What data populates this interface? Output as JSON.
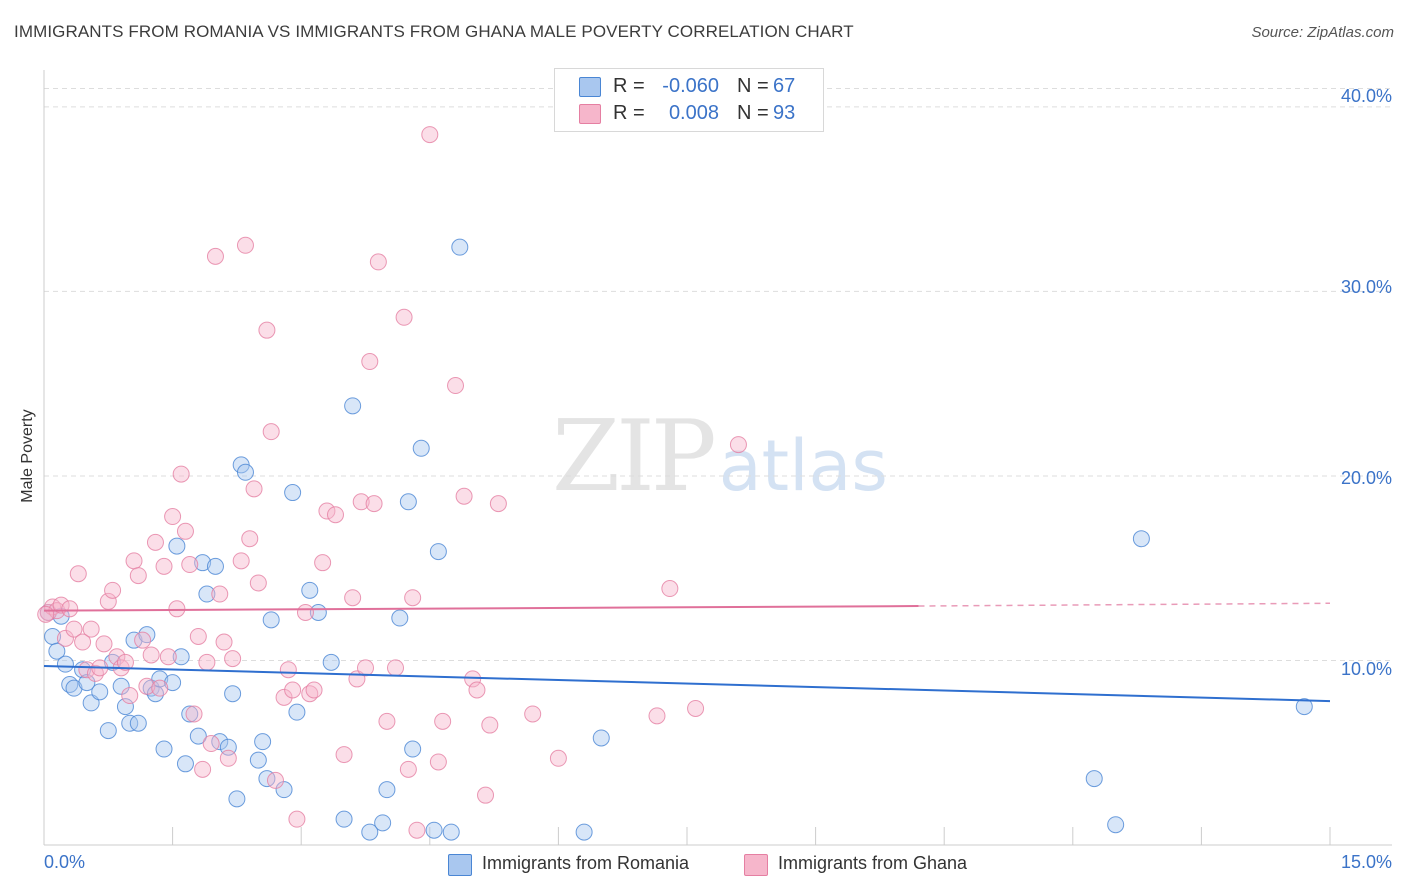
{
  "header": {
    "title": "IMMIGRANTS FROM ROMANIA VS IMMIGRANTS FROM GHANA MALE POVERTY CORRELATION CHART",
    "source": "Source: ZipAtlas.com"
  },
  "watermark": {
    "zip": "ZIP",
    "atlas": "atlas"
  },
  "legend_top": {
    "rows": [
      {
        "r_label": "R =",
        "r_value": "-0.060",
        "n_label": "N =",
        "n_value": "67",
        "color": "#a9c7ef"
      },
      {
        "r_label": "R =",
        "r_value": "0.008",
        "n_label": "N =",
        "n_value": "93",
        "color": "#f6b6cb"
      }
    ]
  },
  "legend_bottom": {
    "items": [
      {
        "label": "Immigrants from Romania",
        "color": "#a9c7ef"
      },
      {
        "label": "Immigrants from Ghana",
        "color": "#f6b6cb"
      }
    ]
  },
  "axes": {
    "x_min_label": "0.0%",
    "x_max_label": "15.0%",
    "y_ticks": [
      "10.0%",
      "20.0%",
      "30.0%",
      "40.0%"
    ],
    "ylabel": "Male Poverty"
  },
  "colors": {
    "romania_fill": "#a9c7ef",
    "romania_stroke": "#4a86d4",
    "romania_line": "#2f6fcf",
    "ghana_fill": "#f6b6cb",
    "ghana_stroke": "#e57fa2",
    "ghana_line": "#e0709a",
    "axis_text": "#3b73c8",
    "grid": "#dddddd"
  },
  "chart_data": {
    "type": "scatter",
    "title": "IMMIGRANTS FROM ROMANIA VS IMMIGRANTS FROM GHANA MALE POVERTY CORRELATION CHART",
    "xlabel": "",
    "ylabel": "Male Poverty",
    "xlim": [
      0,
      15
    ],
    "ylim": [
      0,
      42
    ],
    "y_ticks": [
      10,
      20,
      30,
      40
    ],
    "grid": "horizontal dashed",
    "series": [
      {
        "name": "Immigrants from Romania",
        "r": -0.06,
        "n": 67,
        "trend": {
          "x": [
            0,
            15
          ],
          "y": [
            9.7,
            7.8
          ]
        },
        "points": [
          [
            0.1,
            11.3
          ],
          [
            0.15,
            10.5
          ],
          [
            0.2,
            12.4
          ],
          [
            0.25,
            9.8
          ],
          [
            0.3,
            8.7
          ],
          [
            0.35,
            8.5
          ],
          [
            0.45,
            9.5
          ],
          [
            0.5,
            8.8
          ],
          [
            0.55,
            7.7
          ],
          [
            0.65,
            8.3
          ],
          [
            0.75,
            6.2
          ],
          [
            0.8,
            9.9
          ],
          [
            0.9,
            8.6
          ],
          [
            0.95,
            7.5
          ],
          [
            1.0,
            6.6
          ],
          [
            1.05,
            11.1
          ],
          [
            1.1,
            6.6
          ],
          [
            1.2,
            11.4
          ],
          [
            1.25,
            8.5
          ],
          [
            1.3,
            8.2
          ],
          [
            1.35,
            9.0
          ],
          [
            1.4,
            5.2
          ],
          [
            1.5,
            8.8
          ],
          [
            1.55,
            16.2
          ],
          [
            1.6,
            10.2
          ],
          [
            1.65,
            4.4
          ],
          [
            1.7,
            7.1
          ],
          [
            1.8,
            5.9
          ],
          [
            1.85,
            15.3
          ],
          [
            1.9,
            13.6
          ],
          [
            2.0,
            15.1
          ],
          [
            2.05,
            5.6
          ],
          [
            2.15,
            5.3
          ],
          [
            2.2,
            8.2
          ],
          [
            2.25,
            2.5
          ],
          [
            2.3,
            20.6
          ],
          [
            2.35,
            20.2
          ],
          [
            2.5,
            4.6
          ],
          [
            2.55,
            5.6
          ],
          [
            2.6,
            3.6
          ],
          [
            2.65,
            12.2
          ],
          [
            2.8,
            3.0
          ],
          [
            2.95,
            7.2
          ],
          [
            2.9,
            19.1
          ],
          [
            3.1,
            13.8
          ],
          [
            3.2,
            12.6
          ],
          [
            3.35,
            9.9
          ],
          [
            3.5,
            1.4
          ],
          [
            3.6,
            23.8
          ],
          [
            3.8,
            0.7
          ],
          [
            3.95,
            1.2
          ],
          [
            4.0,
            3.0
          ],
          [
            4.15,
            12.3
          ],
          [
            4.25,
            18.6
          ],
          [
            4.3,
            5.2
          ],
          [
            4.4,
            21.5
          ],
          [
            4.55,
            0.8
          ],
          [
            4.6,
            15.9
          ],
          [
            4.75,
            0.7
          ],
          [
            4.85,
            32.4
          ],
          [
            6.3,
            0.7
          ],
          [
            6.5,
            5.8
          ],
          [
            12.25,
            3.6
          ],
          [
            12.5,
            1.1
          ],
          [
            12.8,
            16.6
          ],
          [
            14.7,
            7.5
          ],
          [
            0.05,
            12.6
          ]
        ]
      },
      {
        "name": "Immigrants from Ghana",
        "r": 0.008,
        "n": 93,
        "trend": {
          "x": [
            0,
            10.2
          ],
          "y": [
            12.7,
            12.95
          ],
          "dashed_to": [
            15,
            13.1
          ]
        },
        "points": [
          [
            0.05,
            12.6
          ],
          [
            0.1,
            12.9
          ],
          [
            0.15,
            12.7
          ],
          [
            0.2,
            13.0
          ],
          [
            0.25,
            11.2
          ],
          [
            0.3,
            12.8
          ],
          [
            0.35,
            11.7
          ],
          [
            0.4,
            14.7
          ],
          [
            0.45,
            11.0
          ],
          [
            0.5,
            9.5
          ],
          [
            0.55,
            11.7
          ],
          [
            0.6,
            9.3
          ],
          [
            0.65,
            9.6
          ],
          [
            0.7,
            10.9
          ],
          [
            0.75,
            13.2
          ],
          [
            0.8,
            13.8
          ],
          [
            0.85,
            10.2
          ],
          [
            0.9,
            9.6
          ],
          [
            0.95,
            9.9
          ],
          [
            1.0,
            8.1
          ],
          [
            1.05,
            15.4
          ],
          [
            1.1,
            14.6
          ],
          [
            1.15,
            11.1
          ],
          [
            1.2,
            8.6
          ],
          [
            1.25,
            10.3
          ],
          [
            1.3,
            16.4
          ],
          [
            1.35,
            8.5
          ],
          [
            1.4,
            15.1
          ],
          [
            1.45,
            10.2
          ],
          [
            1.5,
            17.8
          ],
          [
            1.55,
            12.8
          ],
          [
            1.6,
            20.1
          ],
          [
            1.65,
            17.0
          ],
          [
            1.7,
            15.2
          ],
          [
            1.75,
            7.1
          ],
          [
            1.8,
            11.3
          ],
          [
            1.85,
            4.1
          ],
          [
            1.9,
            9.9
          ],
          [
            1.95,
            5.5
          ],
          [
            2.0,
            31.9
          ],
          [
            2.05,
            13.6
          ],
          [
            2.1,
            11.0
          ],
          [
            2.15,
            4.7
          ],
          [
            2.2,
            10.1
          ],
          [
            2.3,
            15.4
          ],
          [
            2.35,
            32.5
          ],
          [
            2.4,
            16.6
          ],
          [
            2.45,
            19.3
          ],
          [
            2.5,
            14.2
          ],
          [
            2.6,
            27.9
          ],
          [
            2.65,
            22.4
          ],
          [
            2.7,
            3.5
          ],
          [
            2.8,
            8.0
          ],
          [
            2.85,
            9.5
          ],
          [
            2.9,
            8.4
          ],
          [
            2.95,
            1.4
          ],
          [
            3.05,
            12.6
          ],
          [
            3.1,
            8.2
          ],
          [
            3.15,
            8.4
          ],
          [
            3.25,
            15.3
          ],
          [
            3.3,
            18.1
          ],
          [
            3.4,
            17.9
          ],
          [
            3.5,
            4.9
          ],
          [
            3.6,
            13.4
          ],
          [
            3.65,
            9.0
          ],
          [
            3.7,
            18.6
          ],
          [
            3.75,
            9.6
          ],
          [
            3.8,
            26.2
          ],
          [
            3.85,
            18.5
          ],
          [
            3.9,
            31.6
          ],
          [
            4.0,
            6.7
          ],
          [
            4.1,
            9.6
          ],
          [
            4.2,
            28.6
          ],
          [
            4.25,
            4.1
          ],
          [
            4.3,
            13.4
          ],
          [
            4.35,
            0.8
          ],
          [
            4.5,
            38.5
          ],
          [
            4.6,
            4.5
          ],
          [
            4.65,
            6.7
          ],
          [
            4.8,
            24.9
          ],
          [
            4.9,
            18.9
          ],
          [
            5.0,
            9.0
          ],
          [
            5.05,
            8.4
          ],
          [
            5.15,
            2.7
          ],
          [
            5.2,
            6.5
          ],
          [
            5.3,
            18.5
          ],
          [
            5.7,
            7.1
          ],
          [
            6.0,
            4.7
          ],
          [
            7.15,
            7.0
          ],
          [
            7.3,
            13.9
          ],
          [
            7.6,
            7.4
          ],
          [
            8.1,
            21.7
          ],
          [
            0.02,
            12.5
          ]
        ]
      }
    ]
  }
}
